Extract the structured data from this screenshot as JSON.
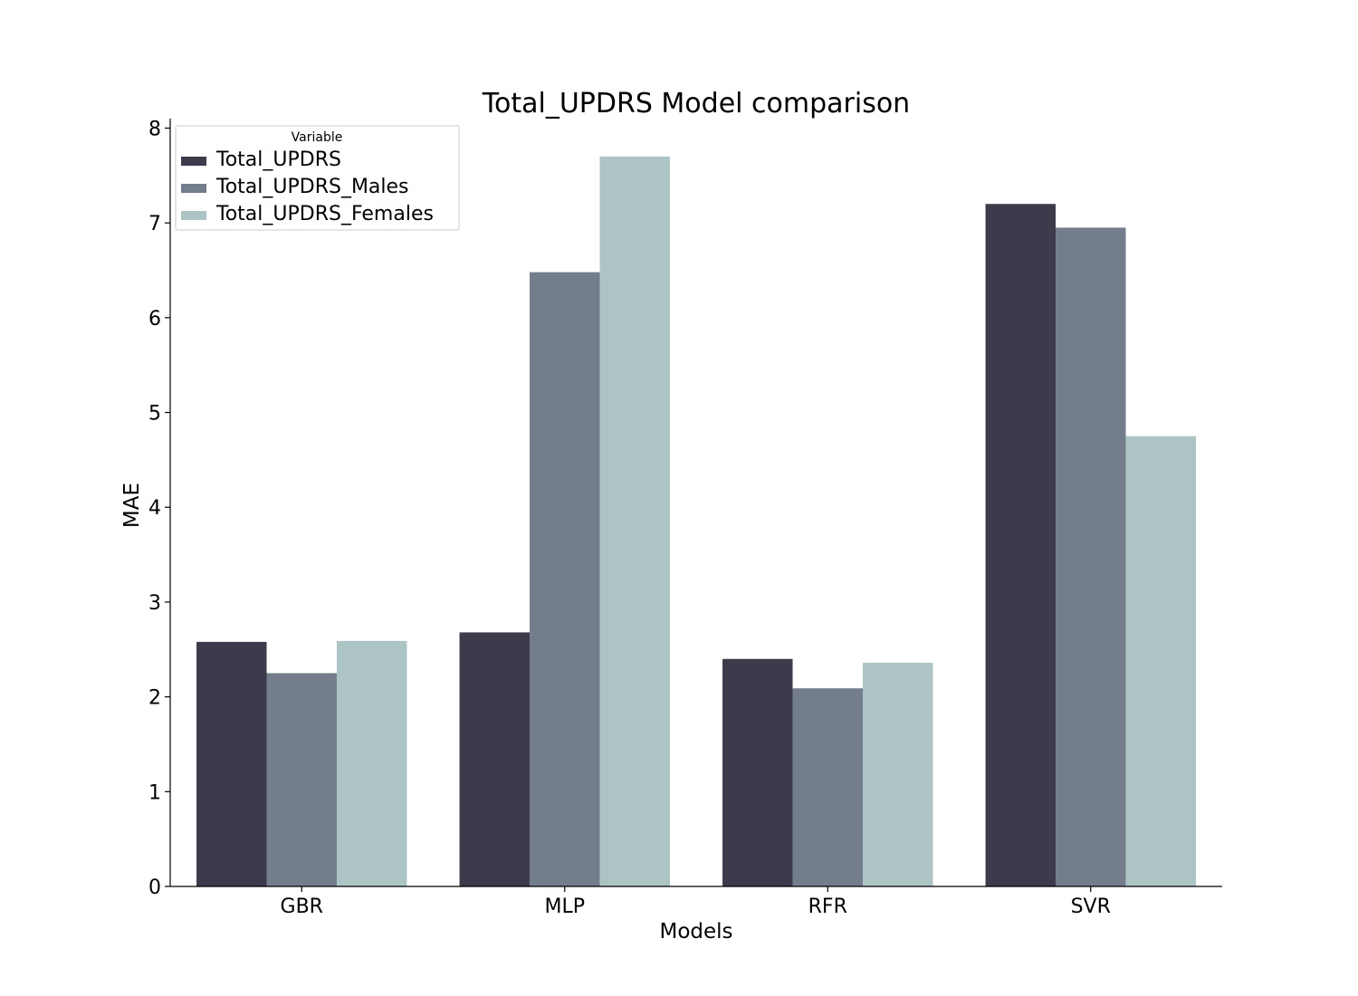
{
  "chart_data": {
    "type": "bar",
    "title": "Total_UPDRS Model comparison",
    "xlabel": "Models",
    "ylabel": "MAE",
    "categories": [
      "GBR",
      "MLP",
      "RFR",
      "SVR"
    ],
    "ylim": [
      0,
      8.1
    ],
    "yticks": [
      0,
      1,
      2,
      3,
      4,
      5,
      6,
      7,
      8
    ],
    "grid": false,
    "legend": {
      "title": "Variable",
      "placement": "top-left"
    },
    "series": [
      {
        "name": "Total_UPDRS",
        "color": "#3c3a4b",
        "values": [
          2.58,
          2.68,
          2.4,
          7.2
        ]
      },
      {
        "name": "Total_UPDRS_Males",
        "color": "#747d8b",
        "values": [
          2.25,
          6.48,
          2.09,
          6.95
        ]
      },
      {
        "name": "Total_UPDRS_Females",
        "color": "#adc4c5",
        "values": [
          2.59,
          7.7,
          2.36,
          4.75
        ]
      }
    ]
  }
}
